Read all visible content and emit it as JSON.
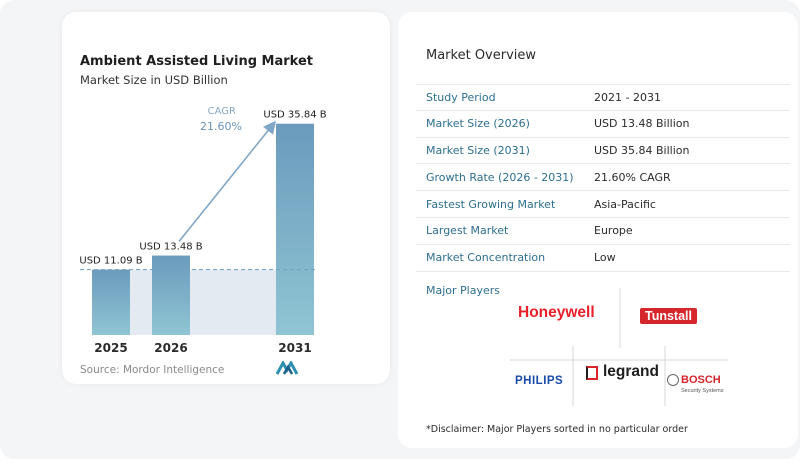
{
  "chart_data": {
    "type": "bar",
    "title": "Ambient Assisted Living Market",
    "subtitle": "Market Size in USD Billion",
    "categories": [
      "2025",
      "2026",
      "2031"
    ],
    "values": [
      11.09,
      13.48,
      35.84
    ],
    "value_labels": [
      "USD 11.09 B",
      "USD 13.48 B",
      "USD 35.84 B"
    ],
    "cagr_label": "CAGR",
    "cagr_value": "21.60%",
    "ylim": [
      0,
      38
    ],
    "grid": false,
    "colors": {
      "bar_top": "#6b9bbd",
      "bar_bottom": "#8fc5d3",
      "band": "#e3eaf1",
      "arrow": "#7fa6c6",
      "dashed": "#6f9fbf"
    }
  },
  "source": "Source:  Mordor Intelligence",
  "overview": {
    "title": "Market Overview",
    "rows": [
      {
        "label": "Study Period",
        "value": "2021 - 2031"
      },
      {
        "label": "Market Size (2026)",
        "value": "USD 13.48 Billion"
      },
      {
        "label": "Market Size (2031)",
        "value": "USD 35.84 Billion"
      },
      {
        "label": "Growth Rate (2026 - 2031)",
        "value": "21.60% CAGR"
      },
      {
        "label": "Fastest Growing Market",
        "value": "Asia-Pacific"
      },
      {
        "label": "Largest Market",
        "value": "Europe"
      },
      {
        "label": "Market Concentration",
        "value": "Low"
      }
    ]
  },
  "players": {
    "title": "Major Players",
    "logos": {
      "honeywell": "Honeywell",
      "tunstall": "Tunstall",
      "philips": "PHILIPS",
      "legrand": "legrand",
      "bosch": "BOSCH",
      "bosch_sub": "Security Systems"
    }
  },
  "disclaimer": "*Disclaimer: Major Players sorted in no particular order"
}
